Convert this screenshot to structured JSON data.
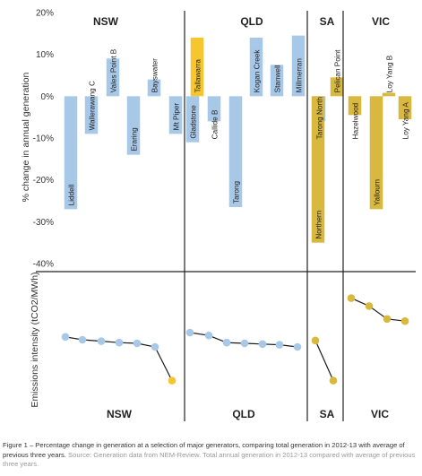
{
  "chart_data": [
    {
      "type": "bar",
      "ylabel": "% change in annual generation",
      "ylim": [
        -40,
        20
      ],
      "y_ticks": [
        "20%",
        "10%",
        "0%",
        "-10%",
        "-20%",
        "-30%",
        "-40%"
      ],
      "grid": false,
      "colors": {
        "coal": "#a8c8e8",
        "gas_or_brown": "#d9b840",
        "gas": "#f5c630"
      },
      "regions": [
        {
          "name": "NSW",
          "categories": [
            "Liddell",
            "Wallerawang C",
            "Vales Point B",
            "Eraring",
            "Bayswater",
            "Mt Piper",
            "Tallawarra"
          ],
          "values": [
            -27,
            -9,
            9,
            -14,
            4,
            -9,
            14
          ],
          "kinds": [
            "coal",
            "coal",
            "coal",
            "coal",
            "coal",
            "coal",
            "gas"
          ]
        },
        {
          "name": "QLD",
          "categories": [
            "Gladstone",
            "Callide B",
            "Tarong",
            "Kogan Creek",
            "Stanwell",
            "Millmerran",
            "Tarong North"
          ],
          "values": [
            -11,
            -6,
            -26.5,
            14,
            7.5,
            14.5,
            -6
          ],
          "kinds": [
            "coal",
            "coal",
            "coal",
            "coal",
            "coal",
            "coal",
            "coal"
          ]
        },
        {
          "name": "SA",
          "categories": [
            "Northern",
            "Pelican Point"
          ],
          "values": [
            -35,
            4.5
          ],
          "kinds": [
            "gas_or_brown",
            "gas_or_brown"
          ]
        },
        {
          "name": "VIC",
          "categories": [
            "Hazelwood",
            "Yallourn",
            "Loy Yang B",
            "Loy Yang A"
          ],
          "values": [
            -4.5,
            -27,
            0.8,
            -5.5
          ],
          "kinds": [
            "gas_or_brown",
            "gas_or_brown",
            "gas_or_brown",
            "gas_or_brown"
          ]
        }
      ]
    },
    {
      "type": "line",
      "ylabel": "Emissions intensity (tCO2/MWh)",
      "ylim": [
        0,
        1.8
      ],
      "grid": false,
      "regions": [
        {
          "name": "NSW",
          "values": [
            0.99,
            0.95,
            0.93,
            0.91,
            0.9,
            0.85,
            0.38
          ],
          "kinds": [
            "coal",
            "coal",
            "coal",
            "coal",
            "coal",
            "coal",
            "gas"
          ]
        },
        {
          "name": "QLD",
          "values": [
            1.05,
            1.01,
            0.91,
            0.9,
            0.89,
            0.88,
            0.85
          ],
          "kinds": [
            "coal",
            "coal",
            "coal",
            "coal",
            "coal",
            "coal",
            "coal"
          ]
        },
        {
          "name": "SA",
          "values": [
            0.94,
            0.38
          ],
          "kinds": [
            "gas_or_brown",
            "gas_or_brown"
          ]
        },
        {
          "name": "VIC",
          "values": [
            1.53,
            1.42,
            1.24,
            1.21
          ],
          "kinds": [
            "gas_or_brown",
            "gas_or_brown",
            "gas_or_brown",
            "gas_or_brown"
          ]
        }
      ]
    }
  ],
  "caption": {
    "text": "Figure 1 – Percentage change in generation at a selection of major generators, comparing total generation in 2012-13 with average of previous three years.",
    "source": " Source: Generation data from NEM-Review. Total annual generation in 2012-13 compared with average of previous three years."
  }
}
